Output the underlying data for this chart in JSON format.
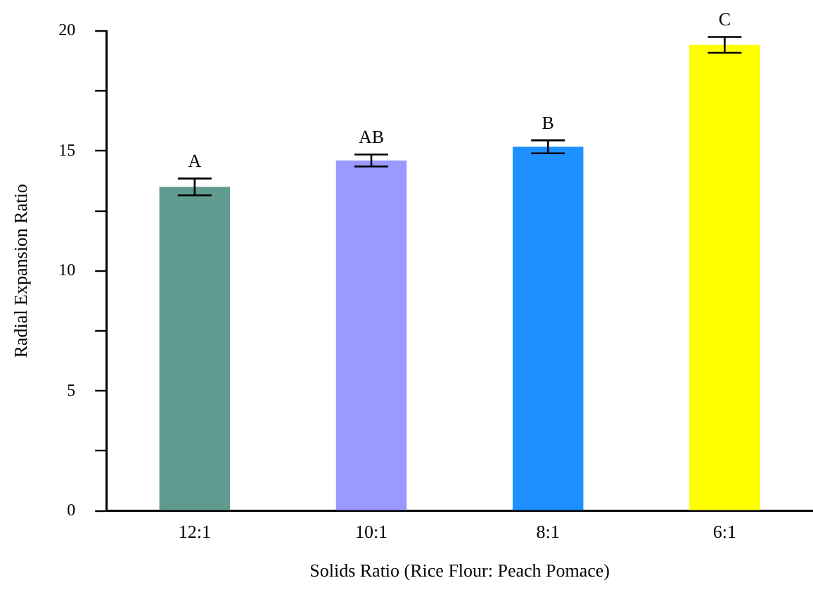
{
  "chart_data": {
    "type": "bar",
    "xlabel": "Solids Ratio (Rice Flour: Peach Pomace)",
    "ylabel": "Radial Expansion Ratio",
    "categories": [
      "12:1",
      "10:1",
      "8:1",
      "6:1"
    ],
    "values": [
      13.5,
      14.6,
      15.17,
      19.42
    ],
    "errors": [
      0.35,
      0.25,
      0.27,
      0.33
    ],
    "colors": [
      "#5f9b8f",
      "#9999ff",
      "#1e90ff",
      "#ffff00"
    ],
    "ylim": [
      0,
      20
    ],
    "yticks": [
      0,
      {
        "value": 2.5,
        "label": null
      },
      5,
      {
        "value": 7.5,
        "label": null
      },
      10,
      {
        "value": 12.5,
        "label": null
      },
      15,
      {
        "value": 17.5,
        "label": null
      },
      20
    ],
    "grid": false,
    "legend": false,
    "annotations": [
      {
        "text": "A",
        "x": "12:1",
        "y": 13.85
      },
      {
        "text": "AB",
        "x": "10:1",
        "y": 14.85
      },
      {
        "text": "B",
        "x": "8:1",
        "y": 15.44
      },
      {
        "text": "C",
        "x": "6:1",
        "y": 19.75
      }
    ]
  }
}
